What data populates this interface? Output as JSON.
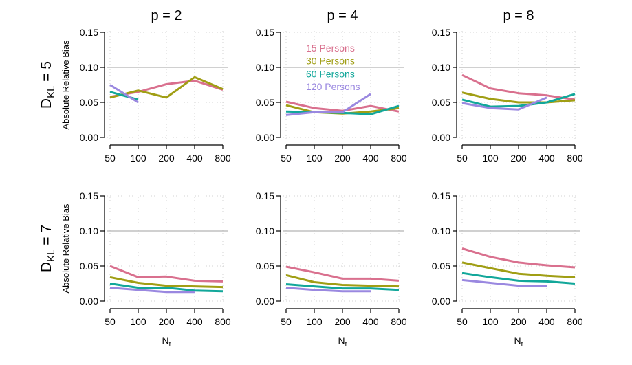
{
  "chart_data": {
    "type": "line",
    "layout": "2x3 facet grid",
    "x_categories": [
      "50",
      "100",
      "200",
      "400",
      "800"
    ],
    "xlabel": "N",
    "xlabel_subscript": "t",
    "ylabel": "Absolute Relative Bias",
    "ylim": [
      0,
      0.15
    ],
    "yticks": [
      "0.00",
      "0.05",
      "0.10",
      "0.15"
    ],
    "reference_line": 0.1,
    "grid": "dotted",
    "legend": {
      "placement": "inside top of p = 4 / D_KL = 5 panel",
      "entries": [
        {
          "label": "15 Persons",
          "color": "#D9708E"
        },
        {
          "label": "30 Persons",
          "color": "#A09E14"
        },
        {
          "label": "60 Persons",
          "color": "#12A79A"
        },
        {
          "label": "120 Persons",
          "color": "#9A88E0"
        }
      ]
    },
    "column_titles": [
      "p = 2",
      "p = 4",
      "p = 8"
    ],
    "row_titles": [
      {
        "main": "D",
        "sub": "KL",
        "rest": " = 5"
      },
      {
        "main": "D",
        "sub": "KL",
        "rest": " = 7"
      }
    ],
    "panels": [
      {
        "row": 0,
        "col": 0,
        "p": 2,
        "D_KL": 5,
        "series": [
          {
            "name": "15 Persons",
            "values": [
              0.058,
              0.065,
              0.076,
              0.081,
              0.068
            ]
          },
          {
            "name": "30 Persons",
            "values": [
              0.057,
              0.067,
              0.057,
              0.086,
              0.069
            ]
          },
          {
            "name": "60 Persons",
            "values": [
              0.065,
              0.054
            ]
          },
          {
            "name": "120 Persons",
            "values": [
              0.075,
              0.05
            ]
          }
        ]
      },
      {
        "row": 0,
        "col": 1,
        "p": 4,
        "D_KL": 5,
        "series": [
          {
            "name": "15 Persons",
            "values": [
              0.051,
              0.042,
              0.038,
              0.045,
              0.037
            ]
          },
          {
            "name": "30 Persons",
            "values": [
              0.046,
              0.036,
              0.034,
              0.037,
              0.042
            ]
          },
          {
            "name": "60 Persons",
            "values": [
              0.037,
              0.036,
              0.035,
              0.033,
              0.045
            ]
          },
          {
            "name": "120 Persons",
            "values": [
              0.032,
              0.036,
              0.036,
              0.062
            ]
          }
        ]
      },
      {
        "row": 0,
        "col": 2,
        "p": 8,
        "D_KL": 5,
        "series": [
          {
            "name": "15 Persons",
            "values": [
              0.089,
              0.07,
              0.063,
              0.06,
              0.054
            ]
          },
          {
            "name": "30 Persons",
            "values": [
              0.064,
              0.055,
              0.05,
              0.05,
              0.053
            ]
          },
          {
            "name": "60 Persons",
            "values": [
              0.054,
              0.044,
              0.045,
              0.05,
              0.062
            ]
          },
          {
            "name": "120 Persons",
            "values": [
              0.049,
              0.042,
              0.04,
              0.057
            ]
          }
        ]
      },
      {
        "row": 1,
        "col": 0,
        "p": 2,
        "D_KL": 7,
        "series": [
          {
            "name": "15 Persons",
            "values": [
              0.05,
              0.034,
              0.035,
              0.029,
              0.028
            ]
          },
          {
            "name": "30 Persons",
            "values": [
              0.034,
              0.026,
              0.022,
              0.021,
              0.02
            ]
          },
          {
            "name": "60 Persons",
            "values": [
              0.025,
              0.019,
              0.019,
              0.015,
              0.014
            ]
          },
          {
            "name": "120 Persons",
            "values": [
              0.019,
              0.016,
              0.013,
              0.013
            ]
          }
        ]
      },
      {
        "row": 1,
        "col": 1,
        "p": 4,
        "D_KL": 7,
        "series": [
          {
            "name": "15 Persons",
            "values": [
              0.049,
              0.041,
              0.032,
              0.032,
              0.029
            ]
          },
          {
            "name": "30 Persons",
            "values": [
              0.037,
              0.027,
              0.023,
              0.022,
              0.021
            ]
          },
          {
            "name": "60 Persons",
            "values": [
              0.024,
              0.021,
              0.018,
              0.018,
              0.016
            ]
          },
          {
            "name": "120 Persons",
            "values": [
              0.019,
              0.016,
              0.014,
              0.014
            ]
          }
        ]
      },
      {
        "row": 1,
        "col": 2,
        "p": 8,
        "D_KL": 7,
        "series": [
          {
            "name": "15 Persons",
            "values": [
              0.075,
              0.063,
              0.055,
              0.051,
              0.048
            ]
          },
          {
            "name": "30 Persons",
            "values": [
              0.055,
              0.047,
              0.039,
              0.036,
              0.034
            ]
          },
          {
            "name": "60 Persons",
            "values": [
              0.04,
              0.034,
              0.029,
              0.028,
              0.025
            ]
          },
          {
            "name": "120 Persons",
            "values": [
              0.03,
              0.026,
              0.022,
              0.022
            ]
          }
        ]
      }
    ]
  }
}
